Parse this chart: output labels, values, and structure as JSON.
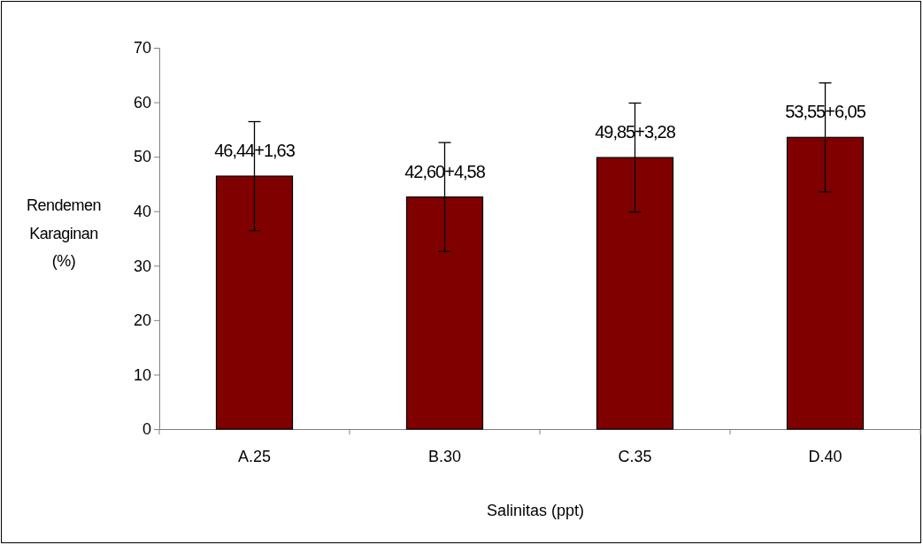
{
  "chart_data": {
    "type": "bar",
    "xlabel": "Salinitas (ppt)",
    "ylabel": "Rendemen Karaginan (%)",
    "categories": [
      "A.25",
      "B.30",
      "C.35",
      "D.40"
    ],
    "values": [
      46.44,
      42.6,
      49.85,
      53.55
    ],
    "errors": [
      10,
      10,
      10,
      10
    ],
    "value_labels": [
      "46,44+1,63",
      "42,60+4,58",
      "49,85+3,28",
      "53,55+6,05"
    ],
    "color": "#800000",
    "ylim": [
      0,
      70
    ],
    "yticks": [
      0,
      10,
      20,
      30,
      40,
      50,
      60,
      70
    ],
    "grid": false
  }
}
